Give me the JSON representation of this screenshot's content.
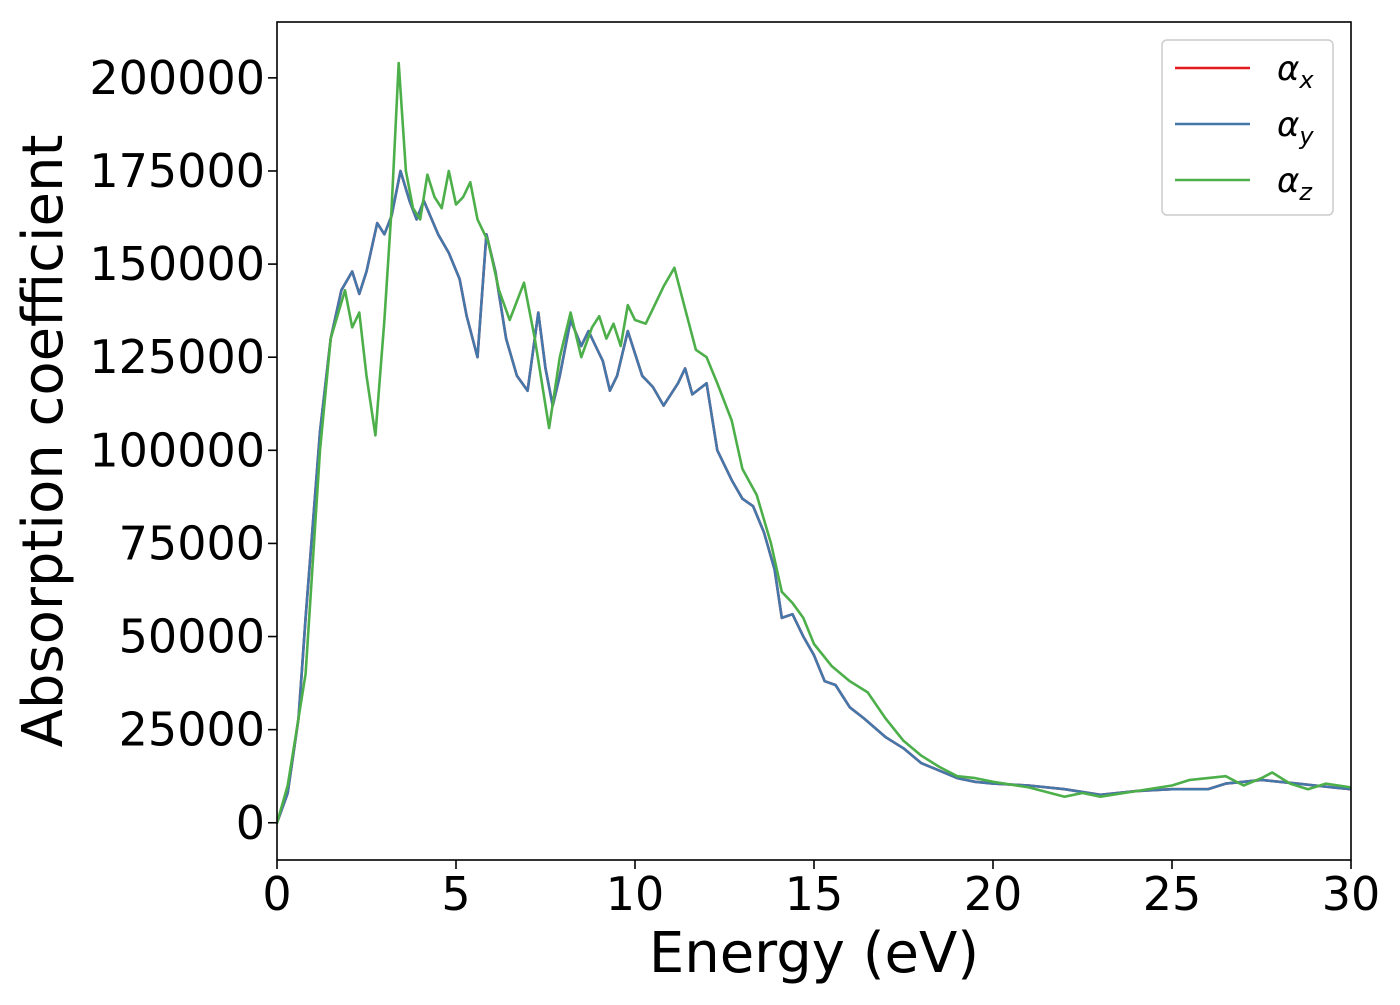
{
  "chart_data": {
    "type": "line",
    "title": "",
    "xlabel": "Energy (eV)",
    "ylabel": "Absorption coefficient",
    "xlim": [
      0,
      30
    ],
    "ylim": [
      -10000,
      215000
    ],
    "xticks": [
      0,
      5,
      10,
      15,
      20,
      25,
      30
    ],
    "xtick_labels": [
      "0",
      "5",
      "10",
      "15",
      "20",
      "25",
      "30"
    ],
    "yticks": [
      0,
      25000,
      50000,
      75000,
      100000,
      125000,
      150000,
      175000,
      200000
    ],
    "ytick_labels": [
      "0",
      "25000",
      "50000",
      "75000",
      "100000",
      "125000",
      "150000",
      "175000",
      "200000"
    ],
    "grid": false,
    "legend_position": "top-right",
    "series": [
      {
        "name": "αx",
        "symbol": "α",
        "subscript": "x",
        "color": "#e41a1c",
        "x": [
          0,
          0.3,
          0.6,
          0.8,
          1.0,
          1.2,
          1.5,
          1.8,
          2.1,
          2.3,
          2.5,
          2.8,
          3.0,
          3.2,
          3.45,
          3.7,
          3.9,
          4.1,
          4.5,
          4.8,
          5.1,
          5.3,
          5.6,
          5.85,
          6.1,
          6.4,
          6.7,
          7.0,
          7.3,
          7.5,
          7.7,
          7.9,
          8.2,
          8.5,
          8.7,
          8.9,
          9.1,
          9.3,
          9.5,
          9.8,
          10.0,
          10.2,
          10.5,
          10.8,
          11.0,
          11.2,
          11.4,
          11.6,
          12.0,
          12.3,
          12.7,
          13.0,
          13.3,
          13.6,
          13.9,
          14.1,
          14.4,
          14.7,
          15.0,
          15.3,
          15.6,
          16.0,
          16.4,
          17.0,
          17.5,
          18.0,
          18.5,
          19.0,
          19.5,
          20.0,
          21.0,
          22.0,
          23.0,
          24.0,
          25.0,
          26.0,
          26.5,
          27.0,
          27.5,
          28.0,
          28.5,
          29.0,
          29.5,
          30.0
        ],
        "y": [
          0,
          8000,
          28000,
          55000,
          80000,
          105000,
          130000,
          143000,
          148000,
          142000,
          148000,
          161000,
          158000,
          163000,
          175000,
          167000,
          162000,
          167000,
          158000,
          153000,
          146000,
          136000,
          125000,
          158000,
          148000,
          130000,
          120000,
          116000,
          137000,
          122000,
          112000,
          120000,
          135000,
          128000,
          132000,
          128000,
          124000,
          116000,
          120000,
          132000,
          126000,
          120000,
          117000,
          112000,
          115000,
          118000,
          122000,
          115000,
          118000,
          100000,
          92000,
          87000,
          85000,
          78000,
          68000,
          55000,
          56000,
          50000,
          45000,
          38000,
          37000,
          31000,
          28000,
          23000,
          20000,
          16000,
          14000,
          12000,
          11000,
          10500,
          10000,
          9000,
          7500,
          8500,
          9000,
          9000,
          10500,
          11000,
          11500,
          11000,
          10500,
          10000,
          9500,
          9000
        ]
      },
      {
        "name": "αy",
        "symbol": "α",
        "subscript": "y",
        "color": "#4477aa",
        "x": [
          0,
          0.3,
          0.6,
          0.8,
          1.0,
          1.2,
          1.5,
          1.8,
          2.1,
          2.3,
          2.5,
          2.8,
          3.0,
          3.2,
          3.45,
          3.7,
          3.9,
          4.1,
          4.5,
          4.8,
          5.1,
          5.3,
          5.6,
          5.85,
          6.1,
          6.4,
          6.7,
          7.0,
          7.3,
          7.5,
          7.7,
          7.9,
          8.2,
          8.5,
          8.7,
          8.9,
          9.1,
          9.3,
          9.5,
          9.8,
          10.0,
          10.2,
          10.5,
          10.8,
          11.0,
          11.2,
          11.4,
          11.6,
          12.0,
          12.3,
          12.7,
          13.0,
          13.3,
          13.6,
          13.9,
          14.1,
          14.4,
          14.7,
          15.0,
          15.3,
          15.6,
          16.0,
          16.4,
          17.0,
          17.5,
          18.0,
          18.5,
          19.0,
          19.5,
          20.0,
          21.0,
          22.0,
          23.0,
          24.0,
          25.0,
          26.0,
          26.5,
          27.0,
          27.5,
          28.0,
          28.5,
          29.0,
          29.5,
          30.0
        ],
        "y": [
          0,
          8000,
          28000,
          55000,
          80000,
          105000,
          130000,
          143000,
          148000,
          142000,
          148000,
          161000,
          158000,
          163000,
          175000,
          167000,
          162000,
          167000,
          158000,
          153000,
          146000,
          136000,
          125000,
          158000,
          148000,
          130000,
          120000,
          116000,
          137000,
          122000,
          112000,
          120000,
          135000,
          128000,
          132000,
          128000,
          124000,
          116000,
          120000,
          132000,
          126000,
          120000,
          117000,
          112000,
          115000,
          118000,
          122000,
          115000,
          118000,
          100000,
          92000,
          87000,
          85000,
          78000,
          68000,
          55000,
          56000,
          50000,
          45000,
          38000,
          37000,
          31000,
          28000,
          23000,
          20000,
          16000,
          14000,
          12000,
          11000,
          10500,
          10000,
          9000,
          7500,
          8500,
          9000,
          9000,
          10500,
          11000,
          11500,
          11000,
          10500,
          10000,
          9500,
          9000
        ]
      },
      {
        "name": "αz",
        "symbol": "α",
        "subscript": "z",
        "color": "#4daf4a",
        "x": [
          0,
          0.3,
          0.5,
          0.8,
          1.0,
          1.2,
          1.5,
          1.9,
          2.1,
          2.3,
          2.5,
          2.75,
          3.0,
          3.2,
          3.4,
          3.6,
          3.8,
          4.0,
          4.2,
          4.4,
          4.6,
          4.8,
          5.0,
          5.2,
          5.4,
          5.6,
          5.9,
          6.2,
          6.5,
          6.9,
          7.2,
          7.6,
          7.9,
          8.2,
          8.5,
          8.8,
          9.0,
          9.2,
          9.4,
          9.6,
          9.8,
          10.0,
          10.3,
          10.5,
          10.8,
          11.1,
          11.4,
          11.7,
          12.0,
          12.3,
          12.7,
          13.0,
          13.4,
          13.8,
          14.1,
          14.4,
          14.7,
          15.0,
          15.5,
          16.0,
          16.5,
          17.0,
          17.5,
          18.0,
          18.5,
          19.0,
          19.5,
          20.0,
          21.0,
          22.0,
          22.5,
          23.0,
          24.0,
          25.0,
          25.5,
          26.0,
          26.5,
          27.0,
          27.5,
          27.8,
          28.3,
          28.8,
          29.3,
          30.0
        ],
        "y": [
          0,
          10000,
          22000,
          40000,
          70000,
          100000,
          130000,
          143000,
          133000,
          137000,
          120000,
          104000,
          135000,
          165000,
          204000,
          175000,
          165000,
          162000,
          174000,
          168000,
          165000,
          175000,
          166000,
          168000,
          172000,
          162000,
          156000,
          143000,
          135000,
          145000,
          130000,
          106000,
          125000,
          137000,
          125000,
          133000,
          136000,
          130000,
          134000,
          128000,
          139000,
          135000,
          134000,
          138000,
          144000,
          149000,
          138000,
          127000,
          125000,
          118000,
          108000,
          95000,
          88000,
          75000,
          62000,
          59000,
          55000,
          48000,
          42000,
          38000,
          35000,
          28000,
          22000,
          18000,
          15000,
          12500,
          12000,
          11000,
          9500,
          7000,
          8000,
          7000,
          8500,
          10000,
          11500,
          12000,
          12500,
          10000,
          12000,
          13500,
          10500,
          9000,
          10500,
          9500
        ]
      }
    ]
  }
}
